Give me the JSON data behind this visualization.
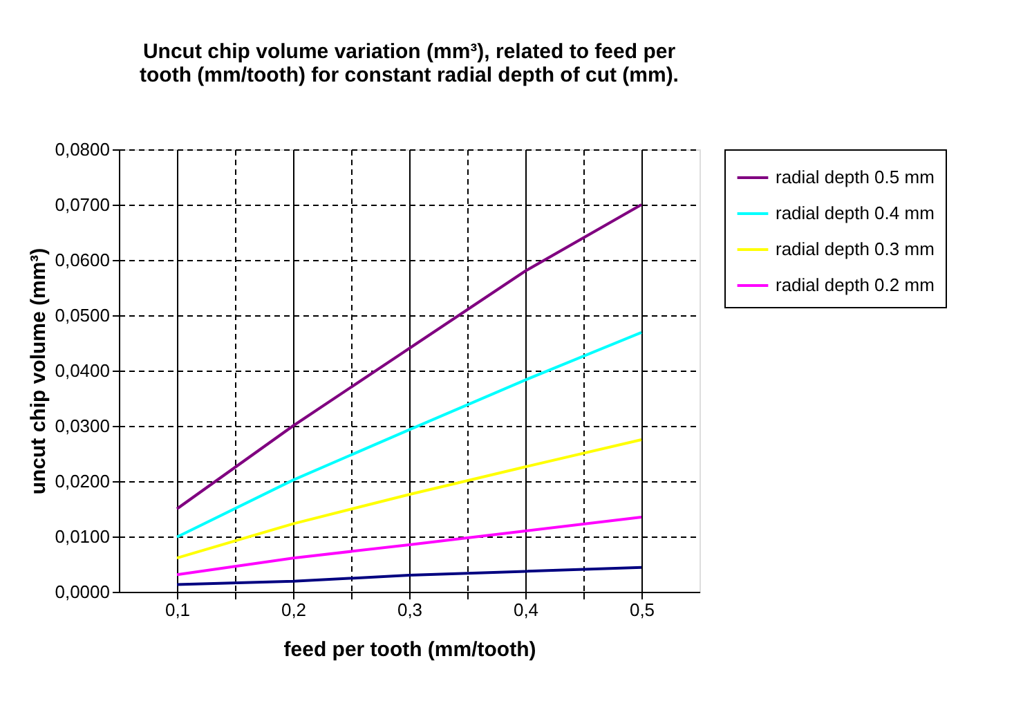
{
  "chart_data": {
    "type": "line",
    "title": "Uncut chip volume variation (mm³), related to feed per tooth (mm/tooth) for constant radial depth of cut (mm).",
    "xlabel": "feed per tooth (mm/tooth)",
    "ylabel": "uncut chip volume (mm³)",
    "x": [
      0.1,
      0.2,
      0.3,
      0.4,
      0.5
    ],
    "series": [
      {
        "name": "radial depth 0.5 mm",
        "color": "#800080",
        "values": [
          0.015,
          0.03,
          0.044,
          0.058,
          0.07
        ]
      },
      {
        "name": "radial depth 0.4 mm",
        "color": "#00ffff",
        "values": [
          0.0099,
          0.0202,
          0.0293,
          0.0383,
          0.0469
        ]
      },
      {
        "name": "radial depth 0.3 mm",
        "color": "#ffff00",
        "values": [
          0.0061,
          0.0123,
          0.0176,
          0.0226,
          0.0275
        ]
      },
      {
        "name": "radial depth 0.2 mm",
        "color": "#ff00ff",
        "values": [
          0.0031,
          0.0061,
          0.0085,
          0.011,
          0.0135
        ]
      },
      {
        "color": "#000080",
        "values": [
          0.0013,
          0.0019,
          0.003,
          0.0037,
          0.0044
        ]
      }
    ],
    "xlim": [
      0.05,
      0.55
    ],
    "xticks": [
      {
        "value": 0.1,
        "label": "0,1"
      },
      {
        "value": 0.15,
        "label": null
      },
      {
        "value": 0.2,
        "label": "0,2"
      },
      {
        "value": 0.25,
        "label": null
      },
      {
        "value": 0.3,
        "label": "0,3"
      },
      {
        "value": 0.35,
        "label": null
      },
      {
        "value": 0.4,
        "label": "0,4"
      },
      {
        "value": 0.45,
        "label": null
      },
      {
        "value": 0.5,
        "label": "0,5"
      }
    ],
    "ylim": [
      0,
      0.08
    ],
    "yticks": [
      {
        "value": 0,
        "label": "0,0000"
      },
      {
        "value": 0.01,
        "label": "0,0100"
      },
      {
        "value": 0.02,
        "label": "0,0200"
      },
      {
        "value": 0.03,
        "label": "0,0300"
      },
      {
        "value": 0.04,
        "label": "0,0400"
      },
      {
        "value": 0.05,
        "label": "0,0500"
      },
      {
        "value": 0.06,
        "label": "0,0600"
      },
      {
        "value": 0.07,
        "label": "0,0700"
      },
      {
        "value": 0.08,
        "label": "0,0800"
      }
    ],
    "grid": true,
    "legend": "right",
    "marker": "none",
    "line_style": "solid"
  }
}
